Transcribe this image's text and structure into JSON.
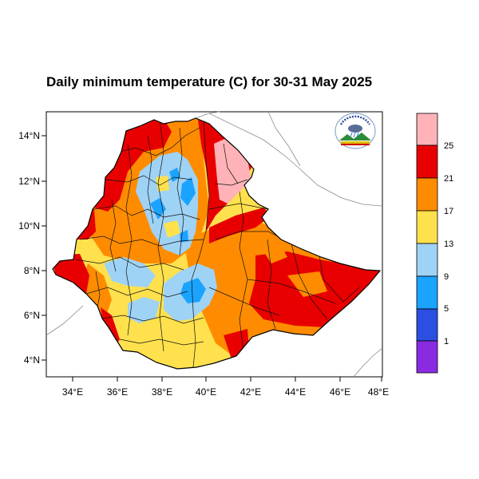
{
  "title": "Daily minimum temperature (C) for 30-31 May 2025",
  "axes": {
    "lat_labels": [
      "14°N",
      "12°N",
      "10°N",
      "8°N",
      "6°N",
      "4°N"
    ],
    "lon_labels": [
      "34°E",
      "36°E",
      "38°E",
      "40°E",
      "42°E",
      "44°E",
      "46°E",
      "48°E"
    ]
  },
  "colorbar": {
    "labels": [
      "25",
      "21",
      "17",
      "13",
      "9",
      "5",
      "1"
    ],
    "colors": [
      "#ffb3b8",
      "#e80000",
      "#ff8c00",
      "#ffe14d",
      "#9fd3f5",
      "#1aa3ff",
      "#2b4fe0",
      "#8a2be2"
    ]
  },
  "logo": {
    "name": "ethiopian-meteorology-institute-logo",
    "text": "Ethiopian Meteorology Institute"
  }
}
